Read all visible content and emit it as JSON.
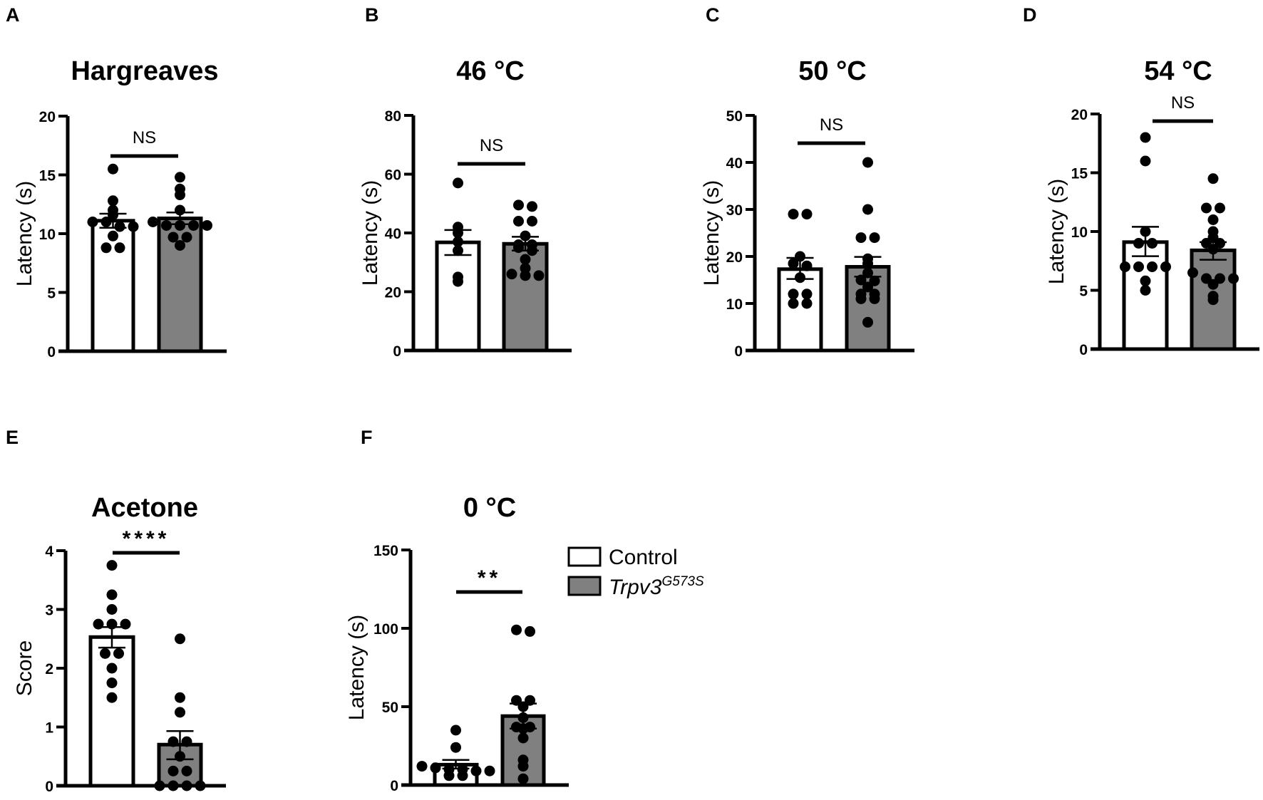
{
  "figure": {
    "legend": {
      "items": [
        {
          "label": "Control",
          "fill": "#ffffff"
        },
        {
          "label": "Trpv3",
          "superscript": "G573S",
          "fill": "#808080"
        }
      ]
    },
    "colors": {
      "control": "#ffffff",
      "mutant": "#808080",
      "stroke": "#000000",
      "dot": "#000000"
    }
  },
  "chart_data": [
    {
      "panel": "A",
      "type": "bar",
      "title": "Hargreaves",
      "ylabel": "Latency (s)",
      "xlabel": "",
      "ylim": [
        0,
        20
      ],
      "yticks": [
        0,
        5,
        10,
        15,
        20
      ],
      "categories": [
        "Control",
        "Trpv3G573S"
      ],
      "series": [
        {
          "name": "Control",
          "mean": 11.1,
          "sem": [
            10.5,
            11.7
          ],
          "points": [
            15.5,
            12.8,
            12.0,
            11.6,
            11.0,
            11.0,
            10.6,
            10.6,
            9.8,
            8.8,
            8.8
          ]
        },
        {
          "name": "Trpv3G573S",
          "mean": 11.3,
          "sem": [
            10.8,
            11.8
          ],
          "points": [
            14.8,
            13.8,
            13.3,
            12.0,
            11.0,
            10.7,
            10.7,
            10.7,
            10.7,
            9.7,
            9.7,
            9.0
          ]
        }
      ],
      "significance": "NS",
      "grid": false
    },
    {
      "panel": "B",
      "type": "bar",
      "title": "46 °C",
      "ylabel": "Latency (s)",
      "xlabel": "",
      "ylim": [
        0,
        80
      ],
      "yticks": [
        0,
        20,
        40,
        60,
        80
      ],
      "categories": [
        "Control",
        "Trpv3G573S"
      ],
      "series": [
        {
          "name": "Control",
          "mean": 36.8,
          "sem": [
            32.5,
            41.0
          ],
          "points": [
            57,
            42,
            40,
            37,
            34,
            25,
            23.5
          ]
        },
        {
          "name": "Trpv3G573S",
          "mean": 36.3,
          "sem": [
            34.0,
            38.7
          ],
          "points": [
            49.5,
            49,
            44,
            44,
            39,
            36,
            36,
            35,
            34,
            31,
            28,
            26,
            25.5,
            25.5
          ]
        }
      ],
      "significance": "NS",
      "grid": false
    },
    {
      "panel": "C",
      "type": "bar",
      "title": "50 °C",
      "ylabel": "Latency (s)",
      "xlabel": "",
      "ylim": [
        0,
        50
      ],
      "yticks": [
        0,
        10,
        20,
        30,
        40,
        50
      ],
      "categories": [
        "Control",
        "Trpv3G573S"
      ],
      "series": [
        {
          "name": "Control",
          "mean": 17.3,
          "sem": [
            15.2,
            19.7
          ],
          "points": [
            29,
            29,
            20,
            18.5,
            18,
            15.5,
            12,
            12,
            10,
            10
          ]
        },
        {
          "name": "Trpv3G573S",
          "mean": 17.8,
          "sem": [
            15.7,
            19.9
          ],
          "points": [
            40,
            30,
            24,
            24,
            19.5,
            18.5,
            16.5,
            15,
            14.8,
            13.5,
            12,
            12,
            11,
            11,
            6
          ]
        }
      ],
      "significance": "NS",
      "grid": false
    },
    {
      "panel": "D",
      "type": "bar",
      "title": "54 °C",
      "ylabel": "Latency (s)",
      "xlabel": "",
      "ylim": [
        0,
        20
      ],
      "yticks": [
        0,
        5,
        10,
        15,
        20
      ],
      "categories": [
        "Control",
        "Trpv3G573S"
      ],
      "series": [
        {
          "name": "Control",
          "mean": 9.1,
          "sem": [
            7.9,
            10.4
          ],
          "points": [
            18,
            16,
            10,
            9,
            9,
            7,
            7,
            7,
            7,
            5.8,
            5
          ]
        },
        {
          "name": "Trpv3G573S",
          "mean": 8.4,
          "sem": [
            7.6,
            9.1
          ],
          "points": [
            14.5,
            12,
            12,
            11,
            10,
            9.5,
            9,
            9,
            8.5,
            6.5,
            6,
            6,
            6,
            5.5,
            4.5,
            4.2
          ]
        }
      ],
      "significance": "NS",
      "grid": false
    },
    {
      "panel": "E",
      "type": "bar",
      "title": "Acetone",
      "ylabel": "Score",
      "xlabel": "",
      "ylim": [
        0,
        4
      ],
      "yticks": [
        0,
        1,
        2,
        3,
        4
      ],
      "categories": [
        "Control",
        "Trpv3G573S"
      ],
      "series": [
        {
          "name": "Control",
          "mean": 2.53,
          "sem": [
            2.35,
            2.7
          ],
          "points": [
            3.75,
            3.25,
            3.0,
            2.75,
            2.75,
            2.75,
            2.25,
            2.25,
            2.0,
            1.75,
            1.5
          ]
        },
        {
          "name": "Trpv3G573S",
          "mean": 0.7,
          "sem": [
            0.45,
            0.93
          ],
          "points": [
            2.5,
            1.5,
            1.25,
            0.75,
            0.75,
            0.5,
            0.25,
            0.25,
            0,
            0,
            0,
            0
          ]
        }
      ],
      "significance": "****",
      "grid": false
    },
    {
      "panel": "F",
      "type": "bar",
      "title": "0 °C",
      "ylabel": "Latency (s)",
      "xlabel": "",
      "ylim": [
        0,
        150
      ],
      "yticks": [
        0,
        50,
        100,
        150
      ],
      "categories": [
        "Control",
        "Trpv3G573S"
      ],
      "series": [
        {
          "name": "Control",
          "mean": 13,
          "sem": [
            10.5,
            16
          ],
          "points": [
            35,
            24,
            12,
            11,
            10,
            10,
            9,
            9,
            6,
            6
          ]
        },
        {
          "name": "Trpv3G573S",
          "mean": 44,
          "sem": [
            36,
            52
          ],
          "points": [
            99,
            98,
            54,
            54,
            50,
            43,
            37,
            37,
            36,
            30,
            16,
            12,
            4
          ]
        }
      ],
      "significance": "**",
      "grid": false
    }
  ]
}
